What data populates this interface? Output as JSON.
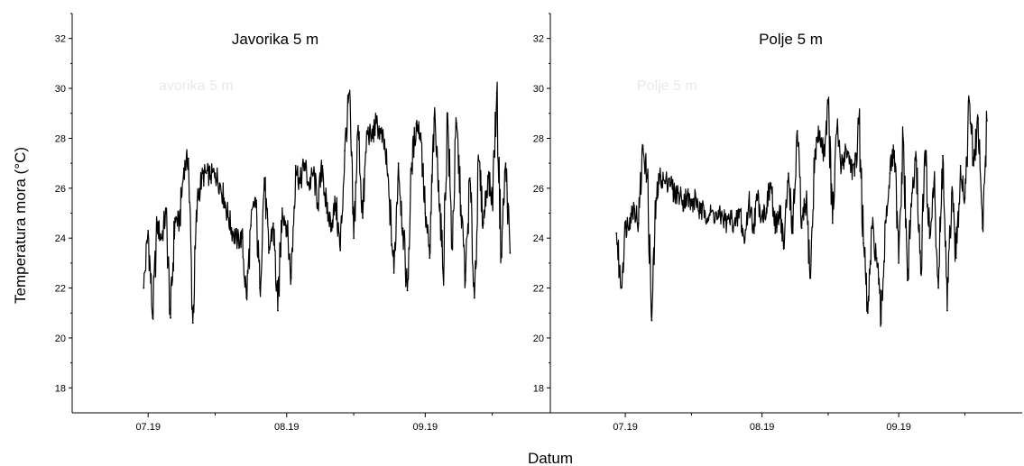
{
  "ylabel": "Temperatura mora (°C)",
  "xlabel": "Datum",
  "chart_data": [
    {
      "type": "line",
      "title": "Javorika 5 m",
      "ghost_title": "avorika 5 m",
      "xlabel": "Datum",
      "ylabel": "Temperatura mora (°C)",
      "ylim": [
        17,
        33
      ],
      "yticks": [
        18,
        20,
        22,
        24,
        26,
        28,
        30,
        32
      ],
      "xlim": [
        "2019-06-14",
        "2019-09-29"
      ],
      "xticks": [
        {
          "date": "2019-07-01",
          "label": "07.19"
        },
        {
          "date": "2019-08-01",
          "label": "08.19"
        },
        {
          "date": "2019-09-01",
          "label": "09.19"
        }
      ],
      "xminor": [
        "2019-07-16",
        "2019-08-16",
        "2019-09-16"
      ],
      "grid": false,
      "series": [
        {
          "values": [
            [
              "2019-06-30",
              22.0
            ],
            [
              "2019-07-01",
              24.3
            ],
            [
              "2019-07-02",
              20.8
            ],
            [
              "2019-07-03",
              24.5
            ],
            [
              "2019-07-04",
              24.0
            ],
            [
              "2019-07-05",
              25.0
            ],
            [
              "2019-07-06",
              20.8
            ],
            [
              "2019-07-07",
              24.8
            ],
            [
              "2019-07-08",
              24.6
            ],
            [
              "2019-07-09",
              26.8
            ],
            [
              "2019-07-10",
              27.2
            ],
            [
              "2019-07-11",
              20.6
            ],
            [
              "2019-07-12",
              25.5
            ],
            [
              "2019-07-13",
              26.4
            ],
            [
              "2019-07-14",
              26.6
            ],
            [
              "2019-07-15",
              26.5
            ],
            [
              "2019-07-16",
              26.6
            ],
            [
              "2019-07-17",
              26.2
            ],
            [
              "2019-07-18",
              25.6
            ],
            [
              "2019-07-19",
              24.8
            ],
            [
              "2019-07-20",
              24.2
            ],
            [
              "2019-07-21",
              23.9
            ],
            [
              "2019-07-22",
              24.0
            ],
            [
              "2019-07-23",
              21.6
            ],
            [
              "2019-07-24",
              24.5
            ],
            [
              "2019-07-25",
              25.6
            ],
            [
              "2019-07-26",
              22.0
            ],
            [
              "2019-07-27",
              26.4
            ],
            [
              "2019-07-28",
              23.4
            ],
            [
              "2019-07-29",
              24.6
            ],
            [
              "2019-07-30",
              21.1
            ],
            [
              "2019-07-31",
              25.2
            ],
            [
              "2019-08-01",
              24.5
            ],
            [
              "2019-08-02",
              22.4
            ],
            [
              "2019-08-03",
              26.9
            ],
            [
              "2019-08-04",
              26.2
            ],
            [
              "2019-08-05",
              27.0
            ],
            [
              "2019-08-06",
              26.1
            ],
            [
              "2019-08-07",
              26.6
            ],
            [
              "2019-08-08",
              25.4
            ],
            [
              "2019-08-09",
              26.9
            ],
            [
              "2019-08-10",
              25.0
            ],
            [
              "2019-08-11",
              24.6
            ],
            [
              "2019-08-12",
              25.4
            ],
            [
              "2019-08-13",
              23.5
            ],
            [
              "2019-08-14",
              27.5
            ],
            [
              "2019-08-15",
              29.8
            ],
            [
              "2019-08-16",
              24.0
            ],
            [
              "2019-08-17",
              28.5
            ],
            [
              "2019-08-18",
              24.8
            ],
            [
              "2019-08-19",
              28.3
            ],
            [
              "2019-08-20",
              28.0
            ],
            [
              "2019-08-21",
              28.6
            ],
            [
              "2019-08-22",
              28.2
            ],
            [
              "2019-08-23",
              27.6
            ],
            [
              "2019-08-24",
              25.5
            ],
            [
              "2019-08-25",
              22.6
            ],
            [
              "2019-08-26",
              27.0
            ],
            [
              "2019-08-27",
              24.4
            ],
            [
              "2019-08-28",
              21.9
            ],
            [
              "2019-08-29",
              27.0
            ],
            [
              "2019-08-30",
              28.6
            ],
            [
              "2019-08-31",
              28.2
            ],
            [
              "2019-09-01",
              25.0
            ],
            [
              "2019-09-02",
              23.2
            ],
            [
              "2019-09-03",
              28.8
            ],
            [
              "2019-09-04",
              26.3
            ],
            [
              "2019-09-05",
              22.6
            ],
            [
              "2019-09-06",
              29.0
            ],
            [
              "2019-09-07",
              23.6
            ],
            [
              "2019-09-08",
              28.6
            ],
            [
              "2019-09-09",
              25.3
            ],
            [
              "2019-09-10",
              22.3
            ],
            [
              "2019-09-11",
              26.4
            ],
            [
              "2019-09-12",
              21.6
            ],
            [
              "2019-09-13",
              27.1
            ],
            [
              "2019-09-14",
              24.6
            ],
            [
              "2019-09-15",
              26.5
            ],
            [
              "2019-09-16",
              25.5
            ],
            [
              "2019-09-17",
              29.8
            ],
            [
              "2019-09-18",
              23.4
            ],
            [
              "2019-09-19",
              27.0
            ],
            [
              "2019-09-20",
              23.4
            ]
          ]
        }
      ]
    },
    {
      "type": "line",
      "title": "Polje 5 m",
      "ghost_title": "Polje 5 m",
      "xlabel": "",
      "ylabel": "",
      "ylim": [
        17,
        33
      ],
      "yticks": [
        18,
        20,
        22,
        24,
        26,
        28,
        30,
        32
      ],
      "xlim": [
        "2019-06-14",
        "2019-09-29"
      ],
      "xticks": [
        {
          "date": "2019-07-01",
          "label": "07.19"
        },
        {
          "date": "2019-08-01",
          "label": "08.19"
        },
        {
          "date": "2019-09-01",
          "label": "09.19"
        }
      ],
      "xminor": [
        "2019-07-16",
        "2019-08-16",
        "2019-09-16"
      ],
      "grid": false,
      "series": [
        {
          "values": [
            [
              "2019-06-29",
              24.2
            ],
            [
              "2019-06-30",
              22.0
            ],
            [
              "2019-07-01",
              24.4
            ],
            [
              "2019-07-02",
              24.8
            ],
            [
              "2019-07-03",
              25.3
            ],
            [
              "2019-07-04",
              24.6
            ],
            [
              "2019-07-05",
              27.7
            ],
            [
              "2019-07-06",
              26.4
            ],
            [
              "2019-07-07",
              20.7
            ],
            [
              "2019-07-08",
              25.6
            ],
            [
              "2019-07-09",
              26.5
            ],
            [
              "2019-07-10",
              26.2
            ],
            [
              "2019-07-11",
              26.4
            ],
            [
              "2019-07-12",
              25.8
            ],
            [
              "2019-07-13",
              25.8
            ],
            [
              "2019-07-14",
              25.5
            ],
            [
              "2019-07-15",
              25.7
            ],
            [
              "2019-07-16",
              25.3
            ],
            [
              "2019-07-17",
              25.6
            ],
            [
              "2019-07-18",
              25.0
            ],
            [
              "2019-07-19",
              25.1
            ],
            [
              "2019-07-20",
              24.9
            ],
            [
              "2019-07-21",
              25.0
            ],
            [
              "2019-07-22",
              24.8
            ],
            [
              "2019-07-23",
              24.9
            ],
            [
              "2019-07-24",
              24.6
            ],
            [
              "2019-07-25",
              24.8
            ],
            [
              "2019-07-26",
              24.5
            ],
            [
              "2019-07-27",
              25.1
            ],
            [
              "2019-07-28",
              23.8
            ],
            [
              "2019-07-29",
              25.5
            ],
            [
              "2019-07-30",
              24.5
            ],
            [
              "2019-07-31",
              25.6
            ],
            [
              "2019-08-01",
              24.9
            ],
            [
              "2019-08-02",
              25.2
            ],
            [
              "2019-08-03",
              26.2
            ],
            [
              "2019-08-04",
              24.2
            ],
            [
              "2019-08-05",
              25.3
            ],
            [
              "2019-08-06",
              23.6
            ],
            [
              "2019-08-07",
              26.6
            ],
            [
              "2019-08-08",
              24.2
            ],
            [
              "2019-08-09",
              28.3
            ],
            [
              "2019-08-10",
              24.4
            ],
            [
              "2019-08-11",
              25.5
            ],
            [
              "2019-08-12",
              22.4
            ],
            [
              "2019-08-13",
              27.5
            ],
            [
              "2019-08-14",
              28.2
            ],
            [
              "2019-08-15",
              27.4
            ],
            [
              "2019-08-16",
              29.4
            ],
            [
              "2019-08-17",
              24.6
            ],
            [
              "2019-08-18",
              28.4
            ],
            [
              "2019-08-19",
              26.8
            ],
            [
              "2019-08-20",
              27.6
            ],
            [
              "2019-08-21",
              27.1
            ],
            [
              "2019-08-22",
              26.5
            ],
            [
              "2019-08-23",
              28.8
            ],
            [
              "2019-08-24",
              23.8
            ],
            [
              "2019-08-25",
              21.0
            ],
            [
              "2019-08-26",
              24.4
            ],
            [
              "2019-08-27",
              23.2
            ],
            [
              "2019-08-28",
              20.6
            ],
            [
              "2019-08-29",
              24.7
            ],
            [
              "2019-08-30",
              26.6
            ],
            [
              "2019-08-31",
              27.5
            ],
            [
              "2019-09-01",
              23.0
            ],
            [
              "2019-09-02",
              28.0
            ],
            [
              "2019-09-03",
              22.3
            ],
            [
              "2019-09-04",
              25.8
            ],
            [
              "2019-09-05",
              27.1
            ],
            [
              "2019-09-06",
              22.6
            ],
            [
              "2019-09-07",
              27.5
            ],
            [
              "2019-09-08",
              24.0
            ],
            [
              "2019-09-09",
              26.2
            ],
            [
              "2019-09-10",
              22.0
            ],
            [
              "2019-09-11",
              27.3
            ],
            [
              "2019-09-12",
              21.1
            ],
            [
              "2019-09-13",
              25.8
            ],
            [
              "2019-09-14",
              23.2
            ],
            [
              "2019-09-15",
              26.9
            ],
            [
              "2019-09-16",
              25.6
            ],
            [
              "2019-09-17",
              29.5
            ],
            [
              "2019-09-18",
              26.9
            ],
            [
              "2019-09-19",
              28.8
            ],
            [
              "2019-09-20",
              24.4
            ],
            [
              "2019-09-21",
              28.7
            ]
          ]
        }
      ]
    }
  ]
}
